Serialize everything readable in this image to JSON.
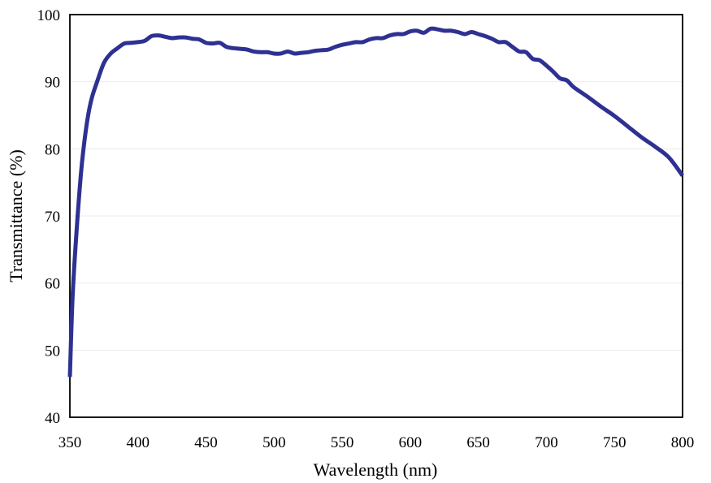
{
  "chart_data": {
    "type": "line",
    "title": "",
    "xlabel": "Wavelength (nm)",
    "ylabel": "Transmittance (%)",
    "xlim": [
      350,
      800
    ],
    "ylim": [
      40,
      100
    ],
    "xticks": [
      350,
      400,
      450,
      500,
      550,
      600,
      650,
      700,
      750,
      800
    ],
    "yticks": [
      40,
      50,
      60,
      70,
      80,
      90,
      100
    ],
    "grid": "horizontal",
    "legend": "none",
    "series": [
      {
        "color": "#2E3192",
        "x": [
          350,
          352,
          355,
          358,
          360,
          363,
          366,
          370,
          375,
          380,
          385,
          390,
          395,
          400,
          405,
          410,
          415,
          420,
          425,
          430,
          435,
          440,
          445,
          450,
          455,
          460,
          465,
          470,
          475,
          480,
          485,
          490,
          495,
          500,
          505,
          510,
          515,
          520,
          525,
          530,
          535,
          540,
          545,
          550,
          555,
          560,
          565,
          570,
          575,
          580,
          585,
          590,
          595,
          600,
          605,
          610,
          615,
          620,
          625,
          630,
          635,
          640,
          645,
          650,
          655,
          660,
          665,
          670,
          675,
          680,
          685,
          690,
          695,
          700,
          705,
          710,
          715,
          720,
          730,
          740,
          750,
          760,
          770,
          780,
          790,
          800
        ],
        "y": [
          46,
          58,
          68,
          76,
          80,
          84.5,
          87.5,
          90,
          92.8,
          94.2,
          95,
          95.7,
          95.8,
          95.9,
          96.1,
          96.8,
          96.9,
          96.7,
          96.5,
          96.6,
          96.6,
          96.4,
          96.3,
          95.8,
          95.7,
          95.8,
          95.2,
          95,
          94.9,
          94.8,
          94.5,
          94.4,
          94.4,
          94.2,
          94.2,
          94.5,
          94.2,
          94.3,
          94.4,
          94.6,
          94.7,
          94.8,
          95.2,
          95.5,
          95.7,
          95.9,
          95.9,
          96.3,
          96.5,
          96.5,
          96.9,
          97.1,
          97.1,
          97.5,
          97.6,
          97.3,
          97.9,
          97.8,
          97.6,
          97.6,
          97.4,
          97.1,
          97.4,
          97.1,
          96.8,
          96.4,
          95.9,
          95.9,
          95.2,
          94.5,
          94.4,
          93.4,
          93.2,
          92.4,
          91.5,
          90.5,
          90.2,
          89.2,
          87.8,
          86.3,
          84.9,
          83.3,
          81.7,
          80.3,
          78.7,
          76
        ]
      }
    ]
  }
}
